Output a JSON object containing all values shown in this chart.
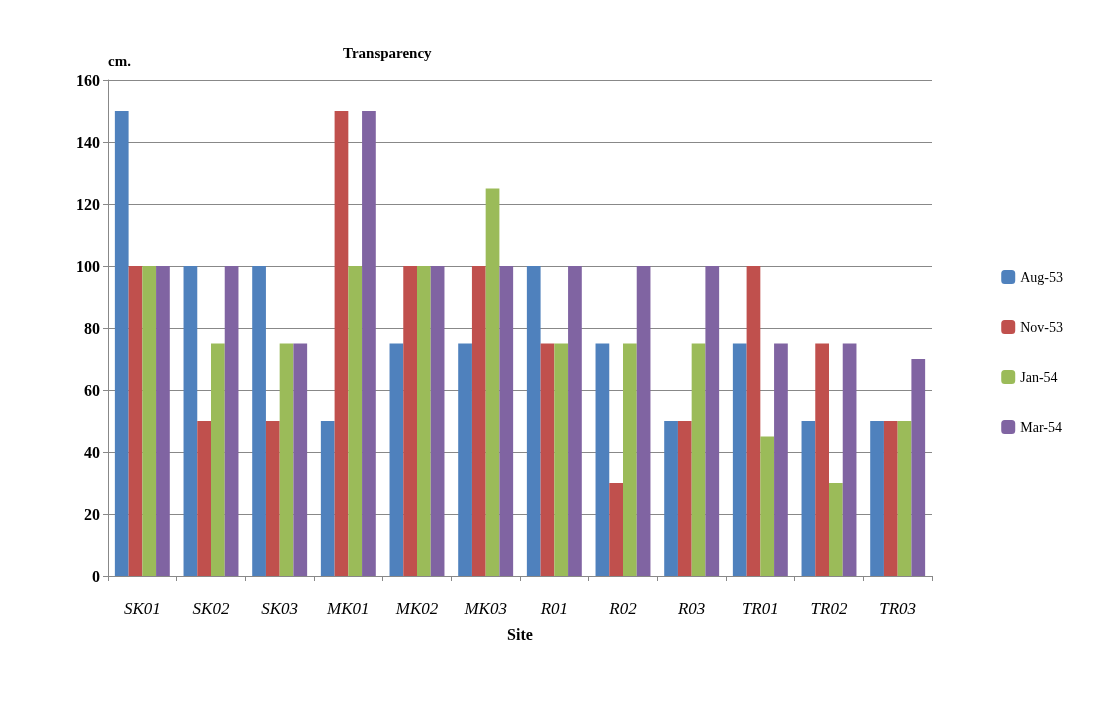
{
  "chart_data": {
    "type": "bar",
    "title": "Transparency",
    "xlabel": "Site",
    "ylabel": "cm.",
    "categories": [
      "SK01",
      "SK02",
      "SK03",
      "MK01",
      "MK02",
      "MK03",
      "R01",
      "R02",
      "R03",
      "TR01",
      "TR02",
      "TR03"
    ],
    "series": [
      {
        "name": "Aug-53",
        "color": "#4f81bd",
        "values": [
          150,
          100,
          100,
          50,
          75,
          75,
          100,
          75,
          50,
          75,
          50,
          50
        ]
      },
      {
        "name": "Nov-53",
        "color": "#c0504d",
        "values": [
          100,
          50,
          50,
          150,
          100,
          100,
          75,
          30,
          50,
          100,
          75,
          50
        ]
      },
      {
        "name": "Jan-54",
        "color": "#9bbb59",
        "values": [
          100,
          75,
          75,
          100,
          100,
          125,
          75,
          75,
          75,
          45,
          30,
          50
        ]
      },
      {
        "name": "Mar-54",
        "color": "#8064a2",
        "values": [
          100,
          100,
          75,
          150,
          100,
          100,
          100,
          100,
          100,
          75,
          75,
          70
        ]
      }
    ],
    "ylim": [
      0,
      160
    ],
    "yticks": [
      0,
      20,
      40,
      60,
      80,
      100,
      120,
      140,
      160
    ],
    "grid": "y",
    "legend": "right"
  }
}
